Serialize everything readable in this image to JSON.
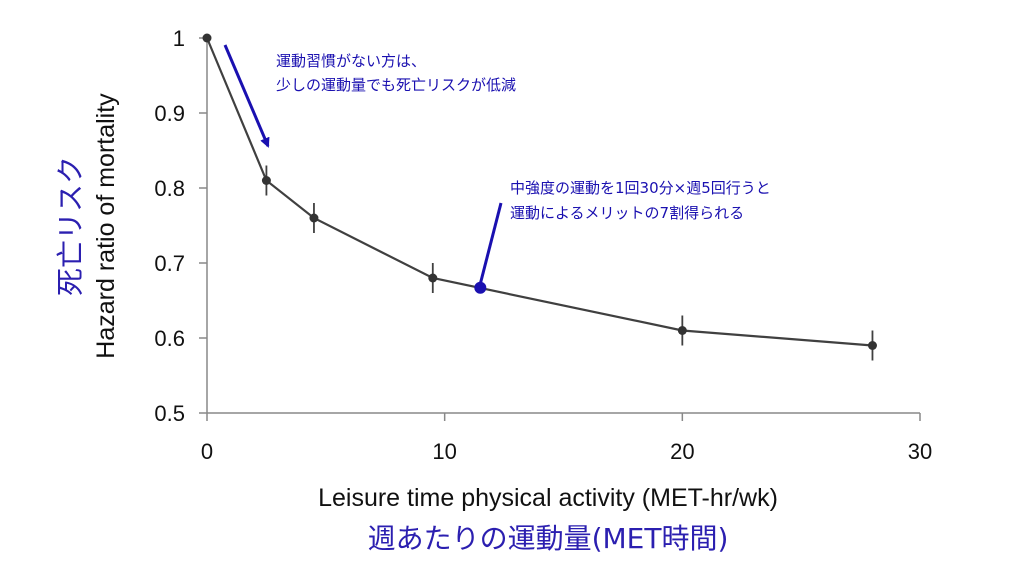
{
  "chart_data": {
    "type": "line",
    "xlabel": "Leisure time physical activity (MET-hr/wk)",
    "xlabel_ja": "週あたりの運動量(MET時間)",
    "ylabel": "Hazard ratio of mortality",
    "ylabel_ja": "死亡リスク",
    "xlim": [
      0,
      30
    ],
    "ylim": [
      0.5,
      1.0
    ],
    "x_ticks": [
      "0",
      "10",
      "20",
      "30"
    ],
    "y_ticks": [
      "0.5",
      "0.6",
      "0.7",
      "0.8",
      "0.9",
      "1"
    ],
    "grid": false,
    "series": [
      {
        "x": [
          0,
          2.5,
          4.5,
          9.5,
          20,
          28
        ],
        "y": [
          1.0,
          0.81,
          0.76,
          0.68,
          0.61,
          0.59
        ],
        "err_low": [
          1.0,
          0.79,
          0.74,
          0.66,
          0.59,
          0.57
        ],
        "err_high": [
          1.0,
          0.83,
          0.78,
          0.7,
          0.63,
          0.61
        ],
        "color": "#404040"
      }
    ],
    "highlight_point": {
      "x": 11.5,
      "y": 0.667,
      "color": "#1a10b0"
    },
    "annotations": [
      {
        "lines": [
          "運動習慣がない方は、",
          "少しの運動量でも死亡リスクが低減"
        ]
      },
      {
        "lines": [
          "中強度の運動を1回30分×週5回行うと",
          "運動によるメリットの7割得られる"
        ]
      }
    ],
    "colors": {
      "accent": "#1a10b0",
      "line": "#404040",
      "axis": "#888888"
    }
  }
}
